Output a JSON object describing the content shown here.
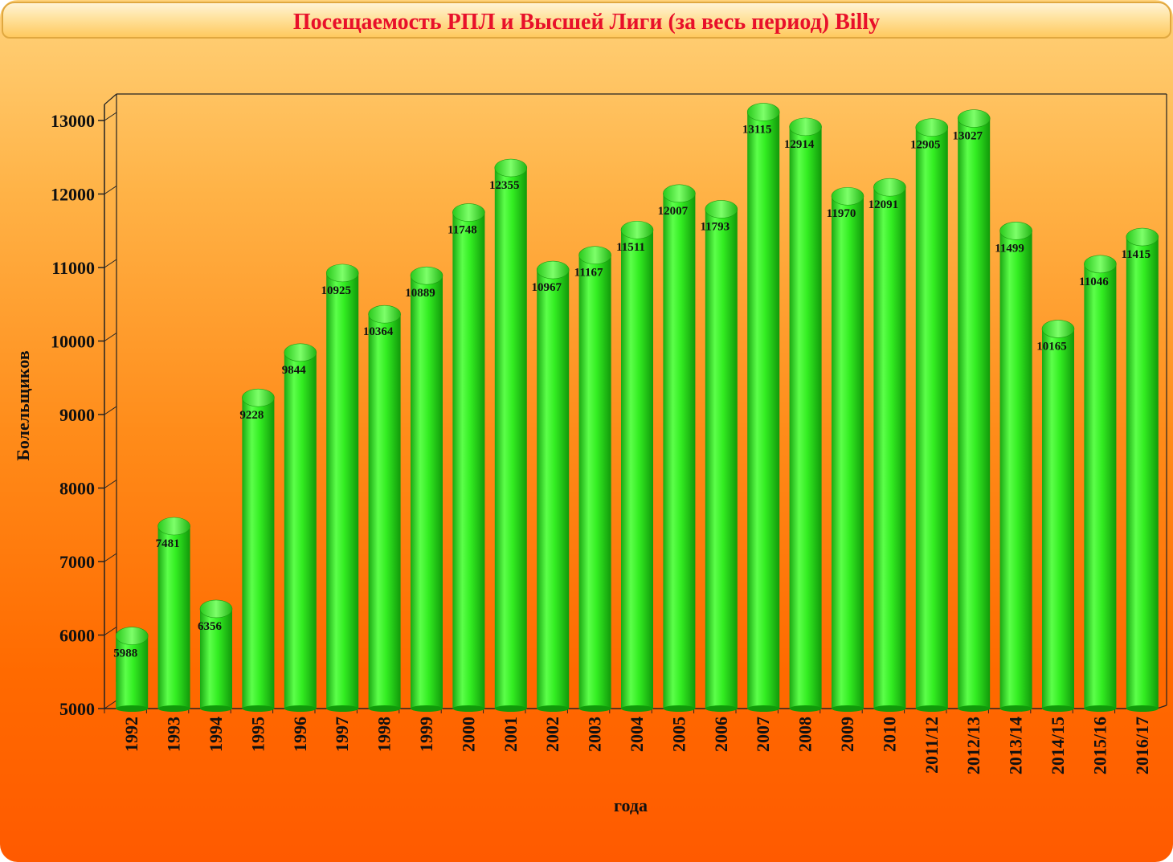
{
  "chart_data": {
    "type": "bar",
    "title": "Посещаемость РПЛ и Высшей Лиги (за весь период) Billy",
    "xlabel": "года",
    "ylabel": "Болельщиков",
    "ylim": [
      5000,
      13000
    ],
    "yticks": [
      5000,
      6000,
      7000,
      8000,
      9000,
      10000,
      11000,
      12000,
      13000
    ],
    "categories": [
      "1992",
      "1993",
      "1994",
      "1995",
      "1996",
      "1997",
      "1998",
      "1999",
      "2000",
      "2001",
      "2002",
      "2003",
      "2004",
      "2005",
      "2006",
      "2007",
      "2008",
      "2009",
      "2010",
      "2011/12",
      "2012/13",
      "2013/14",
      "2014/15",
      "2015/16",
      "2016/17"
    ],
    "values": [
      5988,
      7481,
      6356,
      9228,
      9844,
      10925,
      10364,
      10889,
      11748,
      12355,
      10967,
      11167,
      11511,
      12007,
      11793,
      13115,
      12914,
      11970,
      12091,
      12905,
      13027,
      11499,
      10165,
      11046,
      11415
    ],
    "bar_color": "#33ee22",
    "grid": false,
    "legend": "none"
  }
}
